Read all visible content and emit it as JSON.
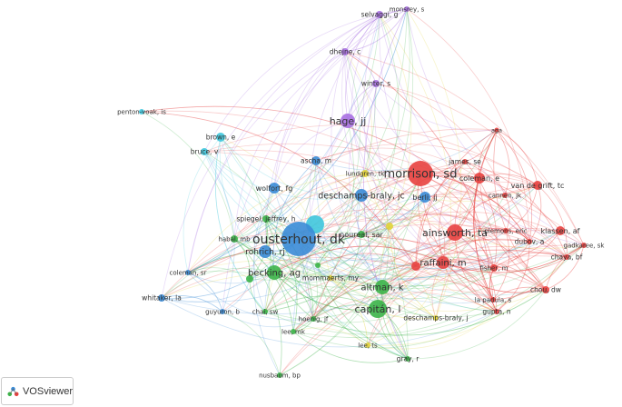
{
  "brand": {
    "name": "VOSviewer"
  },
  "clusters": {
    "red": "#e8413f",
    "green": "#3cb449",
    "blue": "#3a8bd6",
    "cyan": "#3fc6dd",
    "purple": "#a870e2",
    "yellow": "#e2d43a"
  },
  "nodes": [
    {
      "label": "monsrey, s",
      "cluster": "purple"
    },
    {
      "label": "selvaggi, g",
      "cluster": "purple"
    },
    {
      "label": "dhejne, c",
      "cluster": "purple"
    },
    {
      "label": "winter, s",
      "cluster": "purple"
    },
    {
      "label": "hage, jj",
      "cluster": "purple"
    },
    {
      "label": "penton-voak, is",
      "cluster": "cyan"
    },
    {
      "label": "brown, e",
      "cluster": "cyan"
    },
    {
      "label": "bruce, v",
      "cluster": "cyan"
    },
    {
      "label": "ascha, m",
      "cluster": "blue"
    },
    {
      "label": "lundgren, tk",
      "cluster": "yellow"
    },
    {
      "label": "morrison, sd",
      "cluster": "red"
    },
    {
      "label": "james, se",
      "cluster": "red"
    },
    {
      "label": "aga",
      "cluster": "red"
    },
    {
      "label": "coleman, e",
      "cluster": "red"
    },
    {
      "label": "van de grift, tc",
      "cluster": "red"
    },
    {
      "label": "cannen, jk",
      "cluster": "red"
    },
    {
      "label": "wolfort, fg",
      "cluster": "blue"
    },
    {
      "label": "deschamps-braly, jc",
      "cluster": "blue"
    },
    {
      "label": "berli, jj",
      "cluster": "blue"
    },
    {
      "label": "",
      "cluster": "cyan"
    },
    {
      "label": "ousterhout, dk",
      "cluster": "blue"
    },
    {
      "label": "noureal, sar",
      "cluster": "green"
    },
    {
      "label": "",
      "cluster": "yellow"
    },
    {
      "label": "spiegel, jeffrey, h",
      "cluster": "green"
    },
    {
      "label": "habal, mb",
      "cluster": "green"
    },
    {
      "label": "rohrich, rj",
      "cluster": "blue"
    },
    {
      "label": "",
      "cluster": "green"
    },
    {
      "label": "becking, ag",
      "cluster": "green"
    },
    {
      "label": "",
      "cluster": "green"
    },
    {
      "label": "mommaerts, my",
      "cluster": "yellow"
    },
    {
      "label": "coleman, sr",
      "cluster": "blue"
    },
    {
      "label": "whitaker, la",
      "cluster": "blue"
    },
    {
      "label": "guyuron, b",
      "cluster": "blue"
    },
    {
      "label": "chai, sw",
      "cluster": "green"
    },
    {
      "label": "hoenig, jf",
      "cluster": "green"
    },
    {
      "label": "lee, mk",
      "cluster": "green"
    },
    {
      "label": "altman, k",
      "cluster": "green"
    },
    {
      "label": "capitán, l",
      "cluster": "green"
    },
    {
      "label": "ainsworth, ta",
      "cluster": "red"
    },
    {
      "label": "raffaini, m",
      "cluster": "red"
    },
    {
      "label": "",
      "cluster": "red"
    },
    {
      "label": "plemons, eric",
      "cluster": "red"
    },
    {
      "label": "klassen, af",
      "cluster": "red"
    },
    {
      "label": "dubov, a",
      "cluster": "red"
    },
    {
      "label": "gadkaree, sk",
      "cluster": "red"
    },
    {
      "label": "chaya, bf",
      "cluster": "red"
    },
    {
      "label": "fisher, m",
      "cluster": "red"
    },
    {
      "label": "chou, dw",
      "cluster": "red"
    },
    {
      "label": "la padula, s",
      "cluster": "red"
    },
    {
      "label": "gupta, n",
      "cluster": "red"
    },
    {
      "label": "deschamps-braly, j",
      "cluster": "yellow"
    },
    {
      "label": "lee, ts",
      "cluster": "yellow"
    },
    {
      "label": "gray, r",
      "cluster": "green"
    },
    {
      "label": "nusbaum, bp",
      "cluster": "green"
    }
  ]
}
